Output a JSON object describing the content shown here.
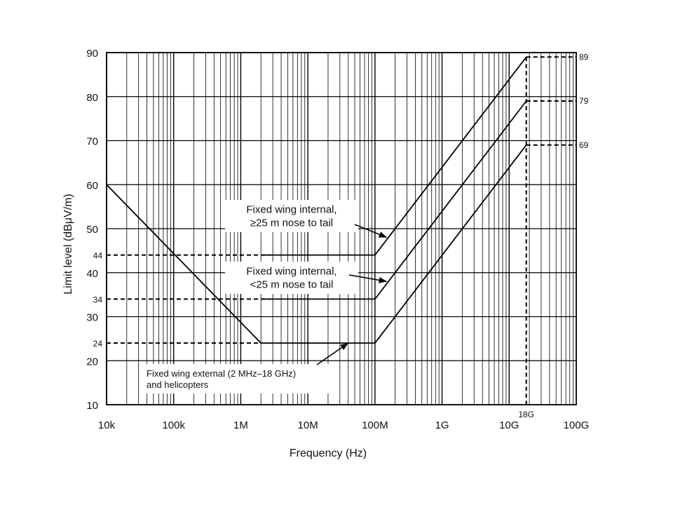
{
  "chart_data": {
    "type": "line",
    "title": "",
    "xlabel": "Frequency (Hz)",
    "ylabel": "Limit level (dBμV/m)",
    "x_scale": "log",
    "xlim": [
      10000,
      100000000000
    ],
    "ylim": [
      10,
      90
    ],
    "x_ticks": [
      {
        "value": 10000,
        "label": "10k"
      },
      {
        "value": 100000,
        "label": "100k"
      },
      {
        "value": 1000000,
        "label": "1M"
      },
      {
        "value": 10000000,
        "label": "10M"
      },
      {
        "value": 100000000,
        "label": "100M"
      },
      {
        "value": 1000000000,
        "label": "1G"
      },
      {
        "value": 10000000000,
        "label": "10G"
      },
      {
        "value": 100000000000,
        "label": "100G"
      }
    ],
    "y_ticks": [
      {
        "value": 10,
        "label": "10"
      },
      {
        "value": 20,
        "label": "20"
      },
      {
        "value": 30,
        "label": "30"
      },
      {
        "value": 40,
        "label": "40"
      },
      {
        "value": 50,
        "label": "50"
      },
      {
        "value": 60,
        "label": "60"
      },
      {
        "value": 70,
        "label": "70"
      },
      {
        "value": 80,
        "label": "80"
      },
      {
        "value": 90,
        "label": "90"
      }
    ],
    "y_extra_ticks": [
      {
        "value": 44,
        "label": "44"
      },
      {
        "value": 34,
        "label": "34"
      },
      {
        "value": 24,
        "label": "24"
      }
    ],
    "right_labels": [
      {
        "value": 89,
        "label": "89"
      },
      {
        "value": 79,
        "label": "79"
      },
      {
        "value": 69,
        "label": "69"
      }
    ],
    "marker_18g": {
      "value": 18000000000,
      "label": "18G"
    },
    "grid": true,
    "series": [
      {
        "points": [
          {
            "x": 10000,
            "y": 60
          },
          {
            "x": 2000000,
            "y": 24
          },
          {
            "x": 100000000,
            "y": 24
          },
          {
            "x": 18000000000,
            "y": 69
          }
        ]
      },
      {
        "points": [
          {
            "x": 100000000,
            "y": 34
          },
          {
            "x": 18000000000,
            "y": 79
          }
        ]
      },
      {
        "points": [
          {
            "x": 100000000,
            "y": 44
          },
          {
            "x": 18000000000,
            "y": 89
          }
        ]
      }
    ],
    "annotations": [
      {
        "lines": [
          "Fixed wing internal,",
          "≥25 m nose to tail"
        ],
        "target": {
          "x": 150000000,
          "y": 48
        }
      },
      {
        "lines": [
          "Fixed wing internal,",
          "<25 m nose to tail"
        ],
        "target": {
          "x": 150000000,
          "y": 38
        }
      },
      {
        "lines": [
          "Fixed wing external (2 MHz–18 GHz)",
          "and helicopters"
        ],
        "target": {
          "x": 40000000,
          "y": 24
        }
      }
    ]
  }
}
